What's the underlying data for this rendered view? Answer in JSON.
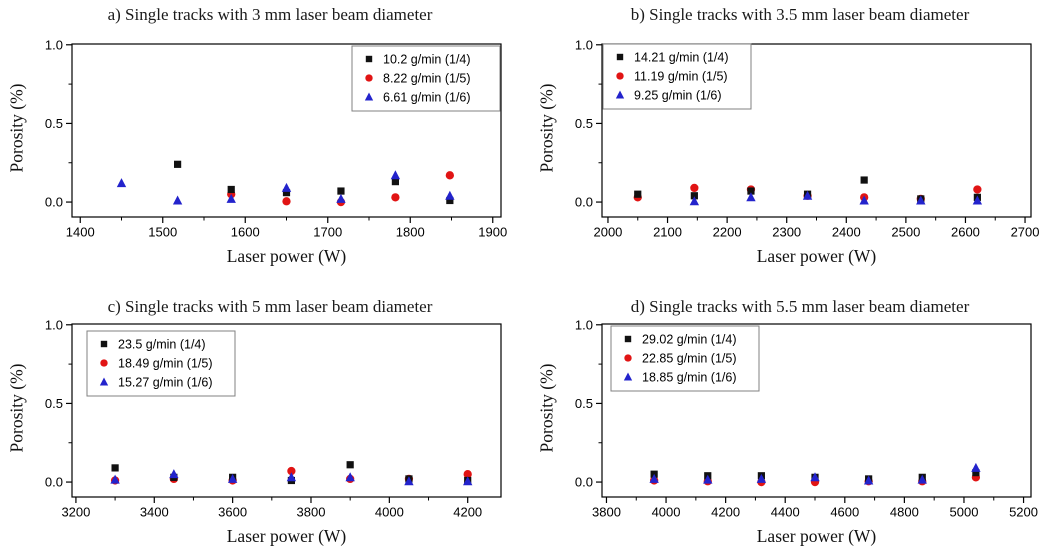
{
  "figure": {
    "background": "#ffffff",
    "frame_color": "#000000",
    "legend_border_color": "#808080"
  },
  "chart_data": [
    {
      "id": "a",
      "type": "scatter",
      "title": "a) Single tracks with 3 mm laser beam diameter",
      "xlabel": "Laser power (W)",
      "ylabel": "Porosity (%)",
      "xlim": [
        1390,
        1910
      ],
      "ylim": [
        -0.095,
        1.005
      ],
      "xticks": [
        1400,
        1500,
        1600,
        1700,
        1800,
        1900
      ],
      "yticks": [
        0,
        0.5,
        1
      ],
      "grid": false,
      "legend_position": "top-right",
      "series": [
        {
          "name": "10.2 g/min (1/4)",
          "marker": "square",
          "color": "#111111",
          "points": [
            [
              1518,
              0.24
            ],
            [
              1583,
              0.08
            ],
            [
              1650,
              0.06
            ],
            [
              1716,
              0.07
            ],
            [
              1782,
              0.13
            ],
            [
              1848,
              0.01
            ]
          ]
        },
        {
          "name": "8.22 g/min (1/5)",
          "marker": "circle",
          "color": "#e11414",
          "points": [
            [
              1583,
              0.05
            ],
            [
              1650,
              0.005
            ],
            [
              1716,
              0.0
            ],
            [
              1782,
              0.03
            ],
            [
              1848,
              0.17
            ]
          ]
        },
        {
          "name": "6.61 g/min (1/6)",
          "marker": "triangle",
          "color": "#2323cc",
          "points": [
            [
              1450,
              0.12
            ],
            [
              1518,
              0.01
            ],
            [
              1583,
              0.02
            ],
            [
              1650,
              0.09
            ],
            [
              1716,
              0.02
            ],
            [
              1782,
              0.17
            ],
            [
              1848,
              0.04
            ]
          ]
        }
      ]
    },
    {
      "id": "b",
      "type": "scatter",
      "title": "b) Single tracks with 3.5 mm laser beam diameter",
      "xlabel": "Laser power (W)",
      "ylabel": "Porosity (%)",
      "xlim": [
        1990,
        2710
      ],
      "ylim": [
        -0.095,
        1.005
      ],
      "xticks": [
        2000,
        2100,
        2200,
        2300,
        2400,
        2500,
        2600,
        2700
      ],
      "yticks": [
        0,
        0.5,
        1
      ],
      "grid": false,
      "legend_position": "top-left",
      "series": [
        {
          "name": "14.21 g/min (1/4)",
          "marker": "square",
          "color": "#111111",
          "points": [
            [
              2050,
              0.05
            ],
            [
              2145,
              0.04
            ],
            [
              2240,
              0.07
            ],
            [
              2335,
              0.05
            ],
            [
              2430,
              0.14
            ],
            [
              2525,
              0.02
            ],
            [
              2620,
              0.03
            ]
          ]
        },
        {
          "name": "11.19 g/min (1/5)",
          "marker": "circle",
          "color": "#e11414",
          "points": [
            [
              2050,
              0.03
            ],
            [
              2145,
              0.09
            ],
            [
              2240,
              0.08
            ],
            [
              2335,
              0.04
            ],
            [
              2430,
              0.03
            ],
            [
              2525,
              0.02
            ],
            [
              2620,
              0.08
            ]
          ]
        },
        {
          "name": "9.25 g/min (1/6)",
          "marker": "triangle",
          "color": "#2323cc",
          "points": [
            [
              2145,
              0.005
            ],
            [
              2240,
              0.03
            ],
            [
              2335,
              0.04
            ],
            [
              2430,
              0.01
            ],
            [
              2525,
              0.01
            ],
            [
              2620,
              0.01
            ]
          ]
        }
      ]
    },
    {
      "id": "c",
      "type": "scatter",
      "title": "c) Single tracks with 5 mm laser beam diameter",
      "xlabel": "Laser power (W)",
      "ylabel": "Porosity (%)",
      "xlim": [
        3190,
        4285
      ],
      "ylim": [
        -0.095,
        1.005
      ],
      "xticks": [
        3200,
        3400,
        3600,
        3800,
        4000,
        4200
      ],
      "yticks": [
        0,
        0.5,
        1
      ],
      "grid": false,
      "legend_position": "top-left",
      "series": [
        {
          "name": "23.5 g/min (1/4)",
          "marker": "square",
          "color": "#111111",
          "points": [
            [
              3300,
              0.09
            ],
            [
              3450,
              0.03
            ],
            [
              3600,
              0.03
            ],
            [
              3750,
              0.01
            ],
            [
              3900,
              0.11
            ],
            [
              4050,
              0.02
            ],
            [
              4200,
              0.01
            ]
          ]
        },
        {
          "name": "18.49 g/min (1/5)",
          "marker": "circle",
          "color": "#e11414",
          "points": [
            [
              3300,
              0.01
            ],
            [
              3450,
              0.02
            ],
            [
              3600,
              0.01
            ],
            [
              3750,
              0.07
            ],
            [
              3900,
              0.02
            ],
            [
              4050,
              0.02
            ],
            [
              4200,
              0.05
            ]
          ]
        },
        {
          "name": "15.27 g/min (1/6)",
          "marker": "triangle",
          "color": "#2323cc",
          "points": [
            [
              3300,
              0.015
            ],
            [
              3450,
              0.05
            ],
            [
              3600,
              0.02
            ],
            [
              3750,
              0.03
            ],
            [
              3900,
              0.03
            ],
            [
              4050,
              0.005
            ],
            [
              4200,
              0.005
            ]
          ]
        }
      ]
    },
    {
      "id": "d",
      "type": "scatter",
      "title": "d) Single tracks with 5.5 mm laser beam diameter",
      "xlabel": "Laser power (W)",
      "ylabel": "Porosity (%)",
      "xlim": [
        3785,
        5225
      ],
      "ylim": [
        -0.095,
        1.005
      ],
      "xticks": [
        3800,
        4000,
        4200,
        4400,
        4600,
        4800,
        5000,
        5200
      ],
      "yticks": [
        0,
        0.5,
        1
      ],
      "grid": false,
      "legend_position": "top-left",
      "series": [
        {
          "name": "29.02 g/min (1/4)",
          "marker": "square",
          "color": "#111111",
          "points": [
            [
              3960,
              0.05
            ],
            [
              4140,
              0.04
            ],
            [
              4320,
              0.04
            ],
            [
              4500,
              0.03
            ],
            [
              4680,
              0.02
            ],
            [
              4860,
              0.03
            ],
            [
              5040,
              0.06
            ]
          ]
        },
        {
          "name": "22.85 g/min (1/5)",
          "marker": "circle",
          "color": "#e11414",
          "points": [
            [
              3960,
              0.01
            ],
            [
              4140,
              0.005
            ],
            [
              4320,
              0.0
            ],
            [
              4500,
              0.0
            ],
            [
              4680,
              0.005
            ],
            [
              4860,
              0.005
            ],
            [
              5040,
              0.03
            ]
          ]
        },
        {
          "name": "18.85 g/min (1/6)",
          "marker": "triangle",
          "color": "#2323cc",
          "points": [
            [
              3960,
              0.02
            ],
            [
              4140,
              0.015
            ],
            [
              4320,
              0.02
            ],
            [
              4500,
              0.03
            ],
            [
              4680,
              0.01
            ],
            [
              4860,
              0.015
            ],
            [
              5040,
              0.09
            ]
          ]
        }
      ]
    }
  ]
}
